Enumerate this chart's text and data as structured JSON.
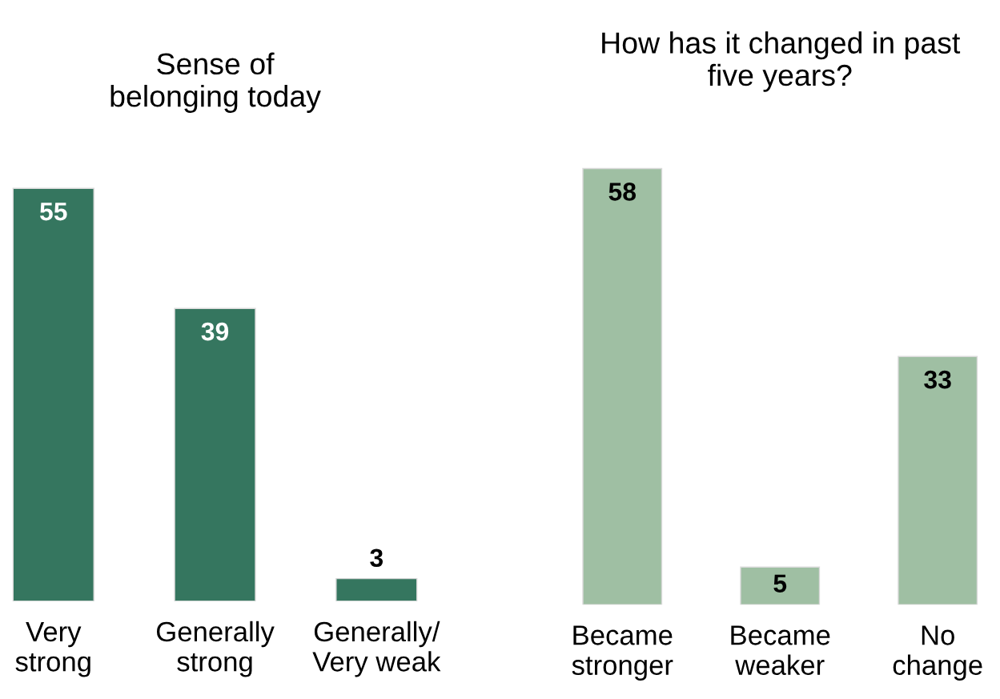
{
  "chart_data": [
    {
      "type": "bar",
      "title": "Sense of\nbelonging today",
      "categories": [
        "Very\nstrong",
        "Generally\nstrong",
        "Generally/\nVery weak"
      ],
      "values": [
        55,
        39,
        3
      ],
      "color": "#35765f",
      "data_labels": true
    },
    {
      "type": "bar",
      "title": "How has it changed in past\nfive years?",
      "categories": [
        "Became\nstronger",
        "Became\nweaker",
        "No\nchange"
      ],
      "values": [
        58,
        5,
        33
      ],
      "color": "#9fbfa3",
      "data_labels": true
    }
  ]
}
